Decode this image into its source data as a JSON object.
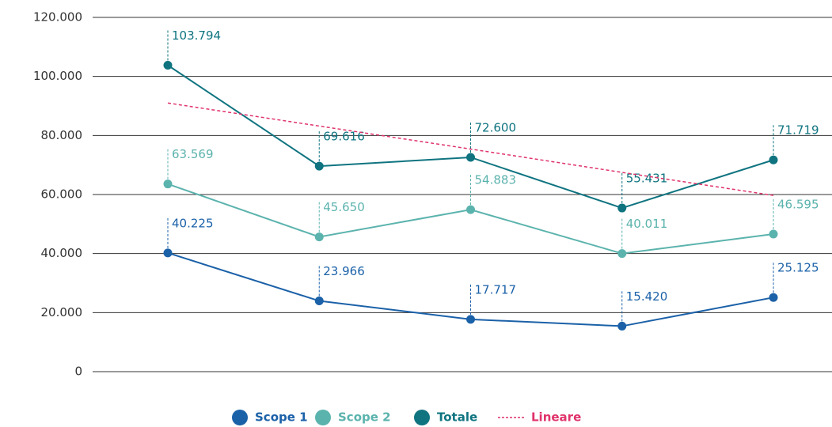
{
  "chart_data": {
    "type": "line",
    "categories": [
      null,
      null,
      null,
      null,
      null
    ],
    "series": [
      {
        "name": "Scope 1",
        "color": "#1b61a8",
        "values": [
          40225,
          23966,
          17717,
          15420,
          25125
        ],
        "value_labels": [
          "40.225",
          "23.966",
          "17.717",
          "15.420",
          "25.125"
        ]
      },
      {
        "name": "Scope 2",
        "color": "#5bb3ad",
        "values": [
          63569,
          45650,
          54883,
          40011,
          46595
        ],
        "value_labels": [
          "63.569",
          "45.650",
          "54.883",
          "40.011",
          "46.595"
        ]
      },
      {
        "name": "Totale",
        "color": "#0f7480",
        "values": [
          103794,
          69616,
          72600,
          55431,
          71719
        ],
        "value_labels": [
          "103.794",
          "69.616",
          "72.600",
          "55.431",
          "71.719"
        ]
      },
      {
        "name": "Lineare",
        "color": "#e0336b",
        "dashed": true,
        "values": [
          91000,
          83200,
          75400,
          67500,
          59700
        ]
      }
    ],
    "ylim": [
      0,
      120000
    ],
    "yticks": [
      0,
      {
        "value": 20000,
        "label": "20.000"
      },
      {
        "value": 40000,
        "label": "40.000"
      },
      {
        "value": 60000,
        "label": "60.000"
      },
      {
        "value": 80000,
        "label": "80.000"
      },
      {
        "value": 100000,
        "label": "100.000"
      },
      {
        "value": 120000,
        "label": "120.000"
      }
    ],
    "grid": true,
    "legend": "bottom"
  }
}
